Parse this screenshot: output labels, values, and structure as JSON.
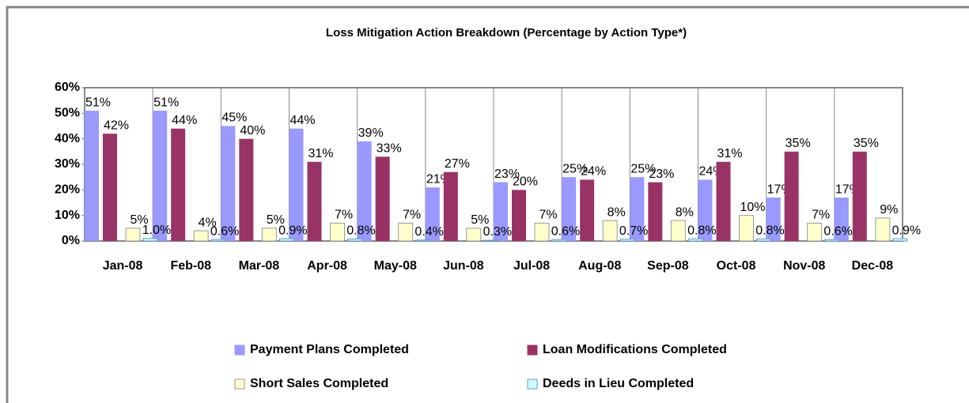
{
  "chart_data": {
    "type": "bar",
    "title": "Loss Mitigation Action Breakdown (Percentage by Action Type*)",
    "categories": [
      "Jan-08",
      "Feb-08",
      "Mar-08",
      "Apr-08",
      "May-08",
      "Jun-08",
      "Jul-08",
      "Aug-08",
      "Sep-08",
      "Oct-08",
      "Nov-08",
      "Dec-08"
    ],
    "series": [
      {
        "name": "Payment Plans Completed",
        "color": "#9999ff",
        "values": [
          51,
          51,
          45,
          44,
          39,
          21,
          23,
          25,
          25,
          24,
          17,
          17
        ],
        "value_labels": [
          "51%",
          "51%",
          "45%",
          "44%",
          "39%",
          "21%",
          "23%",
          "25%",
          "25%",
          "24%",
          "17%",
          "17%"
        ]
      },
      {
        "name": "Loan Modifications Completed",
        "color": "#993366",
        "values": [
          42,
          44,
          40,
          31,
          33,
          27,
          20,
          24,
          23,
          31,
          35,
          35
        ],
        "value_labels": [
          "42%",
          "44%",
          "40%",
          "31%",
          "33%",
          "27%",
          "20%",
          "24%",
          "23%",
          "31%",
          "35%",
          "35%"
        ]
      },
      {
        "name": "Short Sales Completed",
        "color": "#ffffcc",
        "values": [
          5,
          4,
          5,
          7,
          7,
          5,
          7,
          8,
          8,
          10,
          7,
          9
        ],
        "value_labels": [
          "5%",
          "4%",
          "5%",
          "7%",
          "7%",
          "5%",
          "7%",
          "8%",
          "8%",
          "10%",
          "7%",
          "9%"
        ]
      },
      {
        "name": "Deeds in Lieu Completed",
        "color": "#ccffff",
        "values": [
          1.0,
          0.6,
          0.9,
          0.8,
          0.4,
          0.3,
          0.6,
          0.7,
          0.8,
          0.8,
          0.6,
          0.9
        ],
        "value_labels": [
          "1.0%",
          "0.6%",
          "0.9%",
          "0.8%",
          "0.4%",
          "0.3%",
          "0.6%",
          "0.7%",
          "0.8%",
          "0.8%",
          "0.6%",
          "0.9%"
        ]
      }
    ],
    "ylim": [
      0,
      60
    ],
    "yticks": [
      {
        "value": 0,
        "label": "0%"
      },
      {
        "value": 10,
        "label": "10%"
      },
      {
        "value": 20,
        "label": "20%"
      },
      {
        "value": 30,
        "label": "30%"
      },
      {
        "value": 40,
        "label": "40%"
      },
      {
        "value": 50,
        "label": "50%"
      },
      {
        "value": 60,
        "label": "60%"
      }
    ],
    "grid": true,
    "legend": "bottom"
  }
}
